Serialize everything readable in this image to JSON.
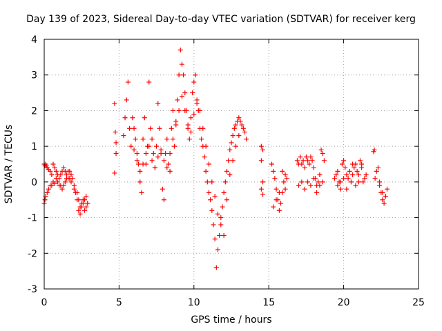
{
  "chart_data": {
    "type": "scatter",
    "title": "Day 139 of 2023, Sidereal Day-to-day VTEC variation (SDTVAR) for receiver kerg",
    "xlabel": "GPS time / hours",
    "ylabel": "SDTVAR / TECUs",
    "xlim": [
      0,
      25
    ],
    "ylim": [
      -3,
      4
    ],
    "xticks": [
      "0",
      "5",
      "10",
      "15",
      "20",
      "25"
    ],
    "yticks": [
      "-3",
      "-2",
      "-1",
      "0",
      "1",
      "2",
      "3",
      "4"
    ],
    "grid": true,
    "marker": "+",
    "color": "#ff0000",
    "series": [
      {
        "name": "seg1",
        "x": [
          0,
          0.05,
          0.1,
          0.15,
          0.2,
          0.3,
          0.4,
          0.5,
          0.6,
          0.7,
          0.8,
          0.9,
          1.0,
          1.1,
          1.2,
          1.3,
          1.4,
          1.5,
          1.6,
          1.7,
          1.8,
          1.9,
          2.0,
          0,
          0.05,
          0.1,
          0.2,
          0.3,
          0.4,
          0.5,
          0.6,
          0.7,
          0.8,
          0.9,
          1.0,
          1.1,
          1.2,
          1.3,
          1.4,
          1.5,
          1.6,
          1.7,
          1.8
        ],
        "y": [
          0.5,
          0.45,
          0.5,
          0.45,
          0.4,
          0.35,
          0.3,
          0.2,
          0.5,
          0.4,
          0.3,
          0.2,
          0.1,
          0.2,
          0.3,
          0.4,
          0.3,
          0.2,
          0.1,
          0.3,
          0.2,
          0.1,
          -0.1,
          -0.6,
          -0.5,
          -0.4,
          -0.3,
          -0.2,
          -0.1,
          -0.1,
          0.0,
          -0.05,
          0.1,
          0.0,
          -0.1,
          -0.1,
          -0.2,
          -0.1,
          0.0,
          0.1,
          0.3,
          0.1,
          0.0
        ]
      },
      {
        "name": "seg2",
        "x": [
          2.0,
          2.1,
          2.2,
          2.3,
          2.4,
          2.5,
          2.6,
          2.7,
          2.8,
          2.9,
          2.2,
          2.3,
          2.4,
          2.5,
          2.6,
          2.7,
          2.8,
          2.9
        ],
        "y": [
          -0.2,
          -0.3,
          -0.5,
          -0.8,
          -0.9,
          -0.7,
          -0.6,
          -0.5,
          -0.4,
          -0.6,
          -0.3,
          -0.5,
          -0.7,
          -0.6,
          -0.5,
          -0.8,
          -0.7,
          -0.6
        ]
      },
      {
        "name": "seg3",
        "x": [
          4.7,
          4.75,
          4.8,
          4.8,
          4.7
        ],
        "y": [
          2.2,
          1.4,
          1.1,
          0.8,
          0.25
        ]
      },
      {
        "name": "seg4",
        "x": [
          5.3,
          5.4,
          5.5,
          5.6,
          5.7,
          5.8,
          5.9,
          6.0,
          6.1,
          6.2,
          6.3,
          6.4,
          6.5,
          6.6,
          6.7,
          6.8,
          6.9,
          7.0,
          7.1,
          7.2,
          7.3,
          7.4,
          7.5,
          7.6,
          7.7,
          7.8,
          7.9,
          8.0,
          8.1,
          8.2,
          8.3,
          8.4,
          8.5,
          8.6,
          8.7,
          8.8,
          8.9,
          9.0,
          9.1,
          9.2,
          9.3,
          9.4,
          9.5,
          9.6,
          9.7,
          9.8,
          9.9,
          10.0,
          10.1,
          10.2,
          10.3,
          10.4,
          10.5,
          10.6,
          10.7,
          10.8,
          10.9,
          11.0,
          11.1,
          11.2,
          11.3,
          11.4,
          11.5,
          11.6,
          11.7,
          11.8,
          11.9,
          12.0,
          12.1,
          12.2,
          12.3,
          12.4,
          12.5,
          12.6,
          12.7,
          12.8,
          12.9,
          13.0,
          13.1,
          13.2,
          13.3,
          13.4,
          13.5
        ],
        "y": [
          1.3,
          1.8,
          2.3,
          2.8,
          1.5,
          1.0,
          1.8,
          1.5,
          1.2,
          0.8,
          0.5,
          0.0,
          -0.3,
          1.2,
          1.8,
          0.5,
          1.0,
          2.8,
          1.5,
          1.2,
          0.8,
          0.4,
          1.0,
          2.2,
          1.5,
          0.8,
          -0.2,
          -0.5,
          0.8,
          1.2,
          0.5,
          0.3,
          1.5,
          2.0,
          1.0,
          1.7,
          2.3,
          3.0,
          3.7,
          3.3,
          3.0,
          2.5,
          2.0,
          1.5,
          1.2,
          1.8,
          2.5,
          2.8,
          3.0,
          2.2,
          2.0,
          1.5,
          1.2,
          1.0,
          0.7,
          0.3,
          0.0,
          -0.3,
          -0.5,
          -0.8,
          -1.2,
          -1.6,
          -2.4,
          -1.9,
          -1.5,
          -1.0,
          -0.7,
          -0.3,
          0.0,
          0.3,
          0.6,
          0.9,
          1.1,
          1.3,
          1.5,
          1.6,
          1.7,
          1.8,
          1.7,
          1.6,
          1.5,
          1.4,
          1.2
        ]
      },
      {
        "name": "seg4b",
        "x": [
          6.0,
          6.2,
          6.4,
          6.6,
          6.8,
          7.0,
          7.2,
          7.4,
          7.6,
          7.8,
          8.0,
          8.2,
          8.4,
          8.6,
          8.8,
          9.0,
          9.2,
          9.4,
          9.6,
          9.8,
          10.0,
          10.2,
          10.4,
          10.6,
          10.8,
          11.0,
          11.2,
          11.4,
          11.6,
          11.8,
          12.0,
          12.2,
          12.4,
          12.6,
          12.8,
          13.0
        ],
        "y": [
          0.9,
          0.6,
          0.3,
          0.5,
          0.8,
          1.0,
          0.6,
          0.4,
          0.7,
          0.9,
          0.6,
          0.4,
          0.8,
          1.2,
          1.6,
          2.0,
          2.4,
          2.0,
          1.6,
          1.4,
          1.9,
          2.3,
          2.0,
          1.5,
          1.0,
          0.5,
          0.0,
          -0.4,
          -0.9,
          -1.2,
          -1.5,
          -0.5,
          0.2,
          0.6,
          1.0,
          1.3
        ]
      },
      {
        "name": "seg5",
        "x": [
          14.5,
          14.6,
          14.5,
          14.6,
          14.5,
          14.6
        ],
        "y": [
          1.0,
          0.9,
          0.6,
          0.0,
          -0.2,
          -0.35
        ]
      },
      {
        "name": "seg6",
        "x": [
          15.2,
          15.3,
          15.4,
          15.5,
          15.6,
          15.7,
          15.8,
          15.9,
          16.0,
          16.1,
          16.2,
          15.3,
          15.5,
          15.7,
          15.9,
          16.1
        ],
        "y": [
          0.5,
          0.3,
          0.1,
          -0.2,
          -0.5,
          -0.8,
          -0.6,
          -0.3,
          0.0,
          0.2,
          0.1,
          -0.7,
          -0.5,
          -0.3,
          0.3,
          -0.2
        ]
      },
      {
        "name": "seg7",
        "x": [
          16.9,
          17.0,
          17.1,
          17.2,
          17.3,
          17.4,
          17.5,
          17.6,
          17.7,
          17.8,
          17.9,
          18.0,
          18.1,
          18.2,
          18.3,
          18.4,
          18.5,
          18.6,
          18.7,
          17.0,
          17.2,
          17.4,
          17.6,
          17.8,
          18.0,
          18.2,
          18.4,
          18.6
        ],
        "y": [
          0.6,
          0.5,
          0.7,
          0.5,
          0.6,
          0.4,
          0.7,
          0.6,
          0.5,
          0.7,
          0.6,
          0.4,
          0.1,
          -0.1,
          0.0,
          0.2,
          0.9,
          0.8,
          0.6,
          -0.1,
          0.0,
          -0.2,
          0.0,
          -0.1,
          0.1,
          -0.3,
          -0.1,
          0.0
        ]
      },
      {
        "name": "seg8",
        "x": [
          19.4,
          19.5,
          19.6,
          19.7,
          19.8,
          19.9,
          20.0,
          20.1,
          20.2,
          20.3,
          20.4,
          20.5,
          20.6,
          20.7,
          20.8,
          20.9,
          21.0,
          21.1,
          21.2,
          21.3,
          21.4,
          21.5,
          19.6,
          19.8,
          20.0,
          20.2,
          20.6,
          20.8,
          21.0,
          21.2
        ],
        "y": [
          0.1,
          0.2,
          0.3,
          0.0,
          -0.2,
          0.5,
          0.6,
          0.4,
          0.2,
          0.1,
          0.3,
          0.0,
          0.5,
          0.4,
          0.5,
          0.3,
          0.2,
          0.6,
          0.5,
          0.0,
          0.1,
          0.2,
          -0.1,
          0.0,
          0.1,
          -0.2,
          0.2,
          -0.1,
          0.0,
          0.4
        ]
      },
      {
        "name": "seg9",
        "x": [
          22.0,
          22.05,
          22.3,
          22.4,
          22.5,
          22.6,
          22.7,
          22.8,
          22.9,
          22.2,
          22.4,
          22.6,
          22.8,
          22.1
        ],
        "y": [
          0.85,
          0.9,
          0.4,
          0.0,
          -0.3,
          -0.5,
          -0.6,
          -0.4,
          -0.2,
          0.3,
          -0.1,
          -0.3,
          -0.4,
          0.1
        ]
      }
    ]
  }
}
